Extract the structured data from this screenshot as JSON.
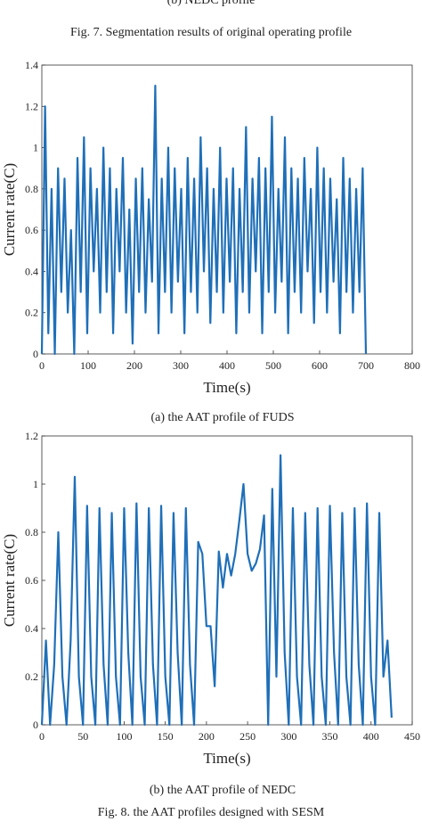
{
  "captions": {
    "top_sub": "(b) NEDC profile",
    "fig7": "Fig. 7.   Segmentation results of original operating profile",
    "sub_a": "(a) the AAT profile of FUDS",
    "sub_b": "(b) the AAT profile of NEDC",
    "fig8": "Fig. 8.   the AAT profiles designed with SESM"
  },
  "chart_data": [
    {
      "type": "line",
      "xlabel": "Time(s)",
      "ylabel": "Current rate(C)",
      "xlim": [
        0,
        800
      ],
      "xticks": [
        0,
        100,
        200,
        300,
        400,
        500,
        600,
        700,
        800
      ],
      "ylim": [
        0,
        1.4
      ],
      "yticks": [
        0,
        0.2,
        0.4,
        0.6,
        0.8,
        1,
        1.2,
        1.4
      ],
      "grid": false,
      "x": [
        0,
        7,
        14,
        21,
        28,
        35,
        42,
        49,
        56,
        63,
        70,
        77,
        84,
        91,
        98,
        105,
        112,
        119,
        126,
        133,
        140,
        147,
        154,
        161,
        168,
        175,
        182,
        189,
        196,
        203,
        210,
        217,
        224,
        231,
        238,
        245,
        252,
        259,
        266,
        273,
        280,
        287,
        294,
        301,
        308,
        315,
        322,
        329,
        336,
        343,
        350,
        357,
        364,
        371,
        378,
        385,
        392,
        399,
        406,
        413,
        420,
        427,
        434,
        441,
        448,
        455,
        462,
        469,
        476,
        483,
        490,
        497,
        504,
        511,
        518,
        525,
        532,
        539,
        546,
        553,
        560,
        567,
        574,
        581,
        588,
        595,
        602,
        609,
        616,
        623,
        630,
        637,
        644,
        651,
        658,
        665,
        672,
        679,
        686,
        693,
        700
      ],
      "series": [
        {
          "color": "#1f6fb8",
          "values": [
            0,
            1.2,
            0.1,
            0.8,
            0,
            0.9,
            0.3,
            0.85,
            0.2,
            0.6,
            0,
            0.95,
            0.3,
            1.05,
            0.1,
            0.9,
            0.4,
            0.8,
            0.2,
            1.0,
            0.3,
            0.9,
            0.1,
            0.8,
            0.4,
            0.95,
            0.2,
            0.7,
            0.05,
            0.85,
            0.3,
            0.9,
            0.2,
            0.75,
            0.35,
            1.3,
            0.1,
            0.85,
            0.3,
            1.0,
            0.2,
            0.9,
            0.35,
            0.8,
            0.1,
            0.95,
            0.3,
            0.85,
            0.2,
            1.05,
            0.4,
            0.9,
            0.15,
            0.8,
            0.3,
            1.0,
            0.2,
            0.85,
            0.35,
            0.9,
            0.1,
            0.8,
            0.3,
            1.1,
            0.2,
            0.85,
            0.4,
            0.95,
            0.1,
            0.9,
            0.3,
            1.15,
            0.2,
            0.8,
            0.35,
            1.05,
            0.1,
            0.9,
            0.3,
            0.85,
            0.2,
            0.95,
            0.4,
            0.8,
            0.15,
            1.0,
            0.3,
            0.9,
            0.2,
            0.85,
            0.35,
            0.75,
            0.1,
            0.95,
            0.3,
            0.85,
            0.2,
            0.8,
            0.3,
            0.9,
            0
          ]
        }
      ]
    },
    {
      "type": "line",
      "xlabel": "Time(s)",
      "ylabel": "Current rate(C)",
      "xlim": [
        0,
        450
      ],
      "xticks": [
        0,
        50,
        100,
        150,
        200,
        250,
        300,
        350,
        400,
        450
      ],
      "ylim": [
        0,
        1.2
      ],
      "yticks": [
        0,
        0.2,
        0.4,
        0.6,
        0.8,
        1,
        1.2
      ],
      "grid": false,
      "x": [
        0,
        5,
        10,
        15,
        20,
        25,
        30,
        35,
        40,
        45,
        50,
        55,
        60,
        65,
        70,
        75,
        80,
        85,
        90,
        95,
        100,
        105,
        110,
        115,
        120,
        125,
        130,
        135,
        140,
        145,
        150,
        155,
        160,
        165,
        170,
        175,
        180,
        185,
        190,
        195,
        200,
        205,
        210,
        215,
        220,
        225,
        230,
        235,
        240,
        245,
        250,
        255,
        260,
        265,
        270,
        275,
        280,
        285,
        290,
        295,
        300,
        305,
        310,
        315,
        320,
        325,
        330,
        335,
        340,
        345,
        350,
        355,
        360,
        365,
        370,
        375,
        380,
        385,
        390,
        395,
        400,
        405,
        410,
        415,
        420,
        425
      ],
      "series": [
        {
          "color": "#1f6fb8",
          "values": [
            0,
            0.35,
            0,
            0.25,
            0.8,
            0.2,
            0,
            0.35,
            1.03,
            0.2,
            0,
            0.91,
            0.2,
            0,
            0.9,
            0.25,
            0,
            0.88,
            0.2,
            0,
            0.9,
            0.3,
            0,
            0.92,
            0.2,
            0,
            0.9,
            0.25,
            0,
            0.91,
            0.2,
            0,
            0.88,
            0.3,
            0,
            0.9,
            0.25,
            0,
            0.76,
            0.71,
            0.41,
            0.41,
            0.16,
            0.72,
            0.57,
            0.71,
            0.62,
            0.71,
            0.85,
            1.0,
            0.71,
            0.64,
            0.67,
            0.73,
            0.87,
            0.0,
            0.98,
            0.2,
            1.12,
            0.3,
            0,
            0.9,
            0.2,
            0,
            0.88,
            0.25,
            0,
            0.9,
            0.2,
            0,
            0.91,
            0.3,
            0,
            0.88,
            0.2,
            0,
            0.9,
            0.25,
            0,
            0.92,
            0.2,
            0,
            0.88,
            0.2,
            0.35,
            0.03
          ]
        }
      ]
    }
  ]
}
